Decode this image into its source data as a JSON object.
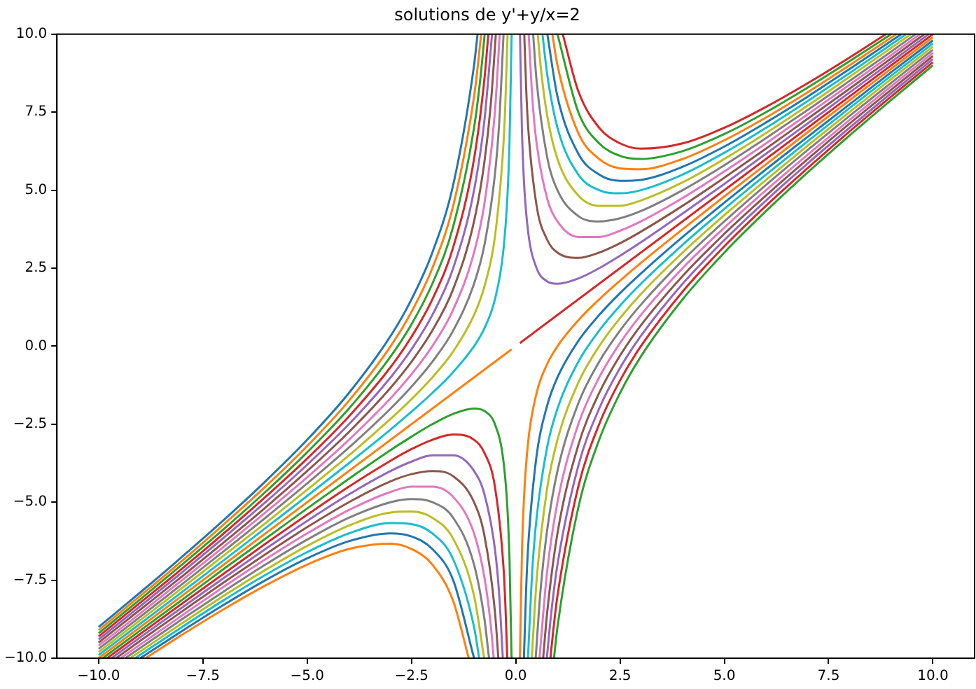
{
  "chart_data": {
    "type": "line",
    "title": "solutions de y'+y/x=2",
    "xlim": [
      -11,
      11
    ],
    "xticks": [
      {
        "value": -10,
        "label": "−10.0"
      },
      {
        "value": -7.5,
        "label": "−7.5"
      },
      {
        "value": -5,
        "label": "−5.0"
      },
      {
        "value": -2.5,
        "label": "−2.5"
      },
      {
        "value": 0,
        "label": "0.0"
      },
      {
        "value": 2.5,
        "label": "2.5"
      },
      {
        "value": 5,
        "label": "5.0"
      },
      {
        "value": 7.5,
        "label": "7.5"
      },
      {
        "value": 10,
        "label": "10.0"
      }
    ],
    "ylim": [
      -10,
      10
    ],
    "yticks": [
      {
        "value": -10,
        "label": "−10.0"
      },
      {
        "value": -7.5,
        "label": "−7.5"
      },
      {
        "value": -5,
        "label": "−5.0"
      },
      {
        "value": -2.5,
        "label": "−2.5"
      },
      {
        "value": 0,
        "label": "0.0"
      },
      {
        "value": 2.5,
        "label": "2.5"
      },
      {
        "value": 5,
        "label": "5.0"
      },
      {
        "value": 7.5,
        "label": "7.5"
      },
      {
        "value": 10,
        "label": "10.0"
      }
    ],
    "series": [
      {
        "color": "#1f77b4",
        "x": [
          -0.916,
          -1,
          -1.5,
          -2,
          -2.5,
          -3,
          -4,
          -5,
          -6,
          -7,
          -8,
          -9,
          -10
        ],
        "values": [
          10,
          9,
          5.17,
          3,
          1.5,
          0.33,
          -1.5,
          -3,
          -4.33,
          -5.57,
          -6.75,
          -7.89,
          -9
        ]
      },
      {
        "color": "#2ca02c",
        "x": [
          0.916,
          1,
          1.5,
          2,
          2.5,
          3,
          4,
          5,
          6,
          7,
          8,
          9,
          10
        ],
        "values": [
          -10,
          -9,
          -5.17,
          -3,
          -1.5,
          -0.33,
          1.5,
          3,
          4.33,
          5.57,
          6.75,
          7.89,
          9
        ]
      },
      {
        "color": "#ff7f0e",
        "x": [
          -0.831,
          -0.9,
          -1,
          -1.5,
          -2,
          -2.5,
          -3,
          -4,
          -5,
          -6,
          -7,
          -8,
          -9,
          -10
        ],
        "values": [
          10,
          9.1,
          8,
          4.5,
          2.5,
          1.1,
          0,
          -1.75,
          -3.2,
          -4.5,
          -5.71,
          -6.88,
          -8,
          -9.1
        ]
      },
      {
        "color": "#d62728",
        "x": [
          0.831,
          0.9,
          1,
          1.5,
          2,
          2.5,
          3,
          4,
          5,
          6,
          7,
          8,
          9,
          10
        ],
        "values": [
          -10,
          -9.1,
          -8,
          -4.5,
          -2.5,
          -1.1,
          0,
          1.75,
          3.2,
          4.5,
          5.71,
          6.88,
          8,
          9.1
        ]
      },
      {
        "color": "#2ca02c",
        "x": [
          -0.745,
          -0.85,
          -1,
          -1.5,
          -2,
          -2.5,
          -3,
          -4,
          -5,
          -6,
          -7,
          -8,
          -9,
          -10
        ],
        "values": [
          10,
          8.56,
          7,
          3.83,
          2,
          0.7,
          -0.33,
          -2,
          -3.4,
          -4.67,
          -5.86,
          -7,
          -8.11,
          -9.2
        ]
      },
      {
        "color": "#9467bd",
        "x": [
          0.745,
          0.85,
          1,
          1.5,
          2,
          2.5,
          3,
          4,
          5,
          6,
          7,
          8,
          9,
          10
        ],
        "values": [
          -10,
          -8.56,
          -7,
          -3.83,
          -2,
          -0.7,
          0.33,
          2,
          3.4,
          4.67,
          5.86,
          7,
          8.11,
          9.2
        ]
      },
      {
        "color": "#d62728",
        "x": [
          -0.657,
          -0.75,
          -1,
          -1.5,
          -2,
          -2.5,
          -3,
          -4,
          -5,
          -6,
          -7,
          -8,
          -9,
          -10
        ],
        "values": [
          10,
          8.58,
          6,
          3.17,
          1.5,
          0.3,
          -0.67,
          -2.25,
          -3.6,
          -4.83,
          -6,
          -7.13,
          -8.22,
          -9.3
        ]
      },
      {
        "color": "#8c564b",
        "x": [
          0.657,
          0.75,
          1,
          1.5,
          2,
          2.5,
          3,
          4,
          5,
          6,
          7,
          8,
          9,
          10
        ],
        "values": [
          -10,
          -8.58,
          -6,
          -3.17,
          -1.5,
          -0.3,
          0.67,
          2.25,
          3.6,
          4.83,
          6,
          7.13,
          8.22,
          9.3
        ]
      },
      {
        "color": "#9467bd",
        "x": [
          -0.568,
          -0.75,
          -1,
          -1.5,
          -2,
          -2.5,
          -3,
          -4,
          -5,
          -6,
          -7,
          -8,
          -9,
          -10
        ],
        "values": [
          10,
          7.25,
          5,
          2.5,
          1,
          -0.1,
          -1,
          -2.5,
          -3.8,
          -5,
          -6.14,
          -7.25,
          -8.33,
          -9.4
        ]
      },
      {
        "color": "#e377c2",
        "x": [
          0.568,
          0.75,
          1,
          1.5,
          2,
          2.5,
          3,
          4,
          5,
          6,
          7,
          8,
          9,
          10
        ],
        "values": [
          -10,
          -7.25,
          -5,
          -2.5,
          -1,
          0.1,
          1,
          2.5,
          3.8,
          5,
          6.14,
          7.25,
          8.33,
          9.4
        ]
      },
      {
        "color": "#8c564b",
        "x": [
          -0.477,
          -0.6,
          -0.75,
          -1,
          -1.5,
          -2,
          -2.5,
          -3,
          -4,
          -5,
          -6,
          -7,
          -8,
          -9,
          -10
        ],
        "values": [
          10,
          7.73,
          5.92,
          4,
          1.83,
          0.5,
          -0.5,
          -1.33,
          -2.75,
          -4,
          -5.17,
          -6.29,
          -7.38,
          -8.44,
          -9.5
        ]
      },
      {
        "color": "#7f7f7f",
        "x": [
          0.477,
          0.6,
          0.75,
          1,
          1.5,
          2,
          2.5,
          3,
          4,
          5,
          6,
          7,
          8,
          9,
          10
        ],
        "values": [
          -10,
          -7.73,
          -5.92,
          -4,
          -1.83,
          -0.5,
          0.5,
          1.33,
          2.75,
          4,
          5.17,
          6.29,
          7.38,
          8.44,
          9.5
        ]
      },
      {
        "color": "#e377c2",
        "x": [
          -0.385,
          -0.5,
          -0.75,
          -1,
          -1.5,
          -2,
          -2.5,
          -3,
          -4,
          -5,
          -6,
          -7,
          -8,
          -9,
          -10
        ],
        "values": [
          10,
          7.5,
          4.58,
          3,
          1.17,
          0,
          -0.9,
          -1.67,
          -3,
          -4.2,
          -5.33,
          -6.43,
          -7.5,
          -8.56,
          -9.6
        ]
      },
      {
        "color": "#bcbd22",
        "x": [
          0.385,
          0.5,
          0.75,
          1,
          1.5,
          2,
          2.5,
          3,
          4,
          5,
          6,
          7,
          8,
          9,
          10
        ],
        "values": [
          -10,
          -7.5,
          -4.58,
          -3,
          -1.17,
          0,
          0.9,
          1.67,
          3,
          4.2,
          5.33,
          6.43,
          7.5,
          8.56,
          9.6
        ]
      },
      {
        "color": "#7f7f7f",
        "x": [
          -0.292,
          -0.4,
          -0.5,
          -0.75,
          -1,
          -1.5,
          -2,
          -2.5,
          -3,
          -4,
          -5,
          -6,
          -7,
          -8,
          -9,
          -10
        ],
        "values": [
          10,
          7.1,
          5.5,
          3.25,
          2,
          0.5,
          -0.5,
          -1.3,
          -2,
          -3.25,
          -4.4,
          -5.5,
          -6.57,
          -7.63,
          -8.67,
          -9.7
        ]
      },
      {
        "color": "#17becf",
        "x": [
          0.292,
          0.4,
          0.5,
          0.75,
          1,
          1.5,
          2,
          2.5,
          3,
          4,
          5,
          6,
          7,
          8,
          9,
          10
        ],
        "values": [
          -10,
          -7.1,
          -5.5,
          -3.25,
          -2,
          -0.5,
          0.5,
          1.3,
          2,
          3.25,
          4.4,
          5.5,
          6.57,
          7.63,
          8.67,
          9.7
        ]
      },
      {
        "color": "#bcbd22",
        "x": [
          -0.196,
          -0.25,
          -0.3,
          -0.5,
          -0.75,
          -1,
          -1.5,
          -2,
          -2.5,
          -3,
          -4,
          -5,
          -6,
          -7,
          -8,
          -9,
          -10
        ],
        "values": [
          10,
          7.75,
          6.37,
          3.5,
          1.92,
          1,
          -0.17,
          -1,
          -1.7,
          -2.33,
          -3.5,
          -4.6,
          -5.67,
          -6.71,
          -7.75,
          -8.78,
          -9.8
        ]
      },
      {
        "color": "#1f77b4",
        "x": [
          0.196,
          0.25,
          0.3,
          0.5,
          0.75,
          1,
          1.5,
          2,
          2.5,
          3,
          4,
          5,
          6,
          7,
          8,
          9,
          10
        ],
        "values": [
          -10,
          -7.75,
          -6.37,
          -3.5,
          -1.92,
          -1,
          0.17,
          1,
          1.7,
          2.33,
          3.5,
          4.6,
          5.67,
          6.71,
          7.75,
          8.78,
          9.8
        ]
      },
      {
        "color": "#17becf",
        "x": [
          -0.099,
          -0.15,
          -0.2,
          -0.3,
          -0.5,
          -0.75,
          -1,
          -1.5,
          -2,
          -2.5,
          -3,
          -4,
          -5,
          -6,
          -7,
          -8,
          -9,
          -10
        ],
        "values": [
          10,
          6.52,
          4.8,
          3.03,
          1.5,
          0.58,
          0,
          -0.83,
          -1.5,
          -2.1,
          -2.67,
          -3.75,
          -4.8,
          -5.83,
          -6.86,
          -7.88,
          -8.89,
          -9.9
        ]
      },
      {
        "color": "#ff7f0e",
        "x": [
          0.099,
          0.15,
          0.2,
          0.3,
          0.5,
          0.75,
          1,
          1.5,
          2,
          2.5,
          3,
          4,
          5,
          6,
          7,
          8,
          9,
          10
        ],
        "values": [
          -10,
          -6.52,
          -4.8,
          -3.03,
          -1.5,
          -0.58,
          0,
          0.83,
          1.5,
          2.1,
          2.67,
          3.75,
          4.8,
          5.83,
          6.86,
          7.88,
          8.89,
          9.9
        ]
      },
      {
        "color": "#ff7f0e",
        "x": [
          -0.1,
          -10
        ],
        "values": [
          -0.1,
          -10
        ]
      },
      {
        "color": "#d62728",
        "x": [
          0.1,
          10
        ],
        "values": [
          0.1,
          10
        ]
      },
      {
        "color": "#2ca02c",
        "x": [
          -0.101,
          -0.15,
          -0.2,
          -0.3,
          -0.5,
          -0.75,
          -1,
          -1.5,
          -2,
          -2.5,
          -3,
          -4,
          -5,
          -6,
          -7,
          -8,
          -9,
          -9.899
        ],
        "values": [
          -10,
          -6.82,
          -5.2,
          -3.63,
          -2.5,
          -2.08,
          -2,
          -2.17,
          -2.5,
          -2.9,
          -3.33,
          -4.25,
          -5.2,
          -6.17,
          -7.14,
          -8.13,
          -9.11,
          -10
        ]
      },
      {
        "color": "#9467bd",
        "x": [
          0.101,
          0.15,
          0.2,
          0.3,
          0.5,
          0.75,
          1,
          1.5,
          2,
          2.5,
          3,
          4,
          5,
          6,
          7,
          8,
          9,
          9.899
        ],
        "values": [
          10,
          6.82,
          5.2,
          3.63,
          2.5,
          2.08,
          2,
          2.17,
          2.5,
          2.9,
          3.33,
          4.25,
          5.2,
          6.17,
          7.14,
          8.13,
          9.11,
          10
        ]
      },
      {
        "color": "#d62728",
        "x": [
          -0.204,
          -0.25,
          -0.3,
          -0.5,
          -0.75,
          -1,
          -1.5,
          -2,
          -2.5,
          -3,
          -4,
          -5,
          -6,
          -7,
          -8,
          -9,
          -9.796
        ],
        "values": [
          -10,
          -8.25,
          -6.97,
          -4.5,
          -3.42,
          -3,
          -2.83,
          -3,
          -3.3,
          -3.67,
          -4.5,
          -5.4,
          -6.33,
          -7.29,
          -8.25,
          -9.22,
          -10
        ]
      },
      {
        "color": "#8c564b",
        "x": [
          0.204,
          0.25,
          0.3,
          0.5,
          0.75,
          1,
          1.5,
          2,
          2.5,
          3,
          4,
          5,
          6,
          7,
          8,
          9,
          9.796
        ],
        "values": [
          10,
          8.25,
          6.97,
          4.5,
          3.42,
          3,
          2.83,
          3,
          3.3,
          3.67,
          4.5,
          5.4,
          6.33,
          7.29,
          8.25,
          9.22,
          10
        ]
      },
      {
        "color": "#9467bd",
        "x": [
          -0.31,
          -0.4,
          -0.5,
          -0.75,
          -1,
          -1.5,
          -2,
          -2.5,
          -3,
          -4,
          -5,
          -6,
          -7,
          -8,
          -9,
          -9.69
        ],
        "values": [
          -10,
          -7.9,
          -6.5,
          -4.75,
          -4,
          -3.5,
          -3.5,
          -3.7,
          -4,
          -4.75,
          -5.6,
          -6.5,
          -7.43,
          -8.38,
          -9.33,
          -10
        ]
      },
      {
        "color": "#e377c2",
        "x": [
          0.31,
          0.4,
          0.5,
          0.75,
          1,
          1.5,
          2,
          2.5,
          3,
          4,
          5,
          6,
          7,
          8,
          9,
          9.69
        ],
        "values": [
          10,
          7.9,
          6.5,
          4.75,
          4,
          3.5,
          3.5,
          3.7,
          4,
          4.75,
          5.6,
          6.5,
          7.43,
          8.38,
          9.33,
          10
        ]
      },
      {
        "color": "#8c564b",
        "x": [
          -0.417,
          -0.5,
          -0.75,
          -1,
          -1.5,
          -2,
          -2.5,
          -3,
          -4,
          -5,
          -6,
          -7,
          -8,
          -9,
          -9.583
        ],
        "values": [
          -10,
          -8.5,
          -6.08,
          -5,
          -4.17,
          -4,
          -4.1,
          -4.33,
          -5,
          -5.8,
          -6.67,
          -7.57,
          -8.5,
          -9.44,
          -10
        ]
      },
      {
        "color": "#7f7f7f",
        "x": [
          0.417,
          0.5,
          0.75,
          1,
          1.5,
          2,
          2.5,
          3,
          4,
          5,
          6,
          7,
          8,
          9,
          9.583
        ],
        "values": [
          10,
          8.5,
          6.08,
          5,
          4.17,
          4,
          4.1,
          4.33,
          5,
          5.8,
          6.67,
          7.57,
          8.5,
          9.44,
          10
        ]
      },
      {
        "color": "#e377c2",
        "x": [
          -0.528,
          -0.6,
          -0.75,
          -1,
          -1.5,
          -2,
          -2.5,
          -3,
          -4,
          -5,
          -6,
          -7,
          -8,
          -9,
          -9.472
        ],
        "values": [
          -10,
          -8.93,
          -7.42,
          -6,
          -4.83,
          -4.5,
          -4.5,
          -4.67,
          -5.25,
          -6,
          -6.83,
          -7.71,
          -8.63,
          -9.56,
          -10
        ]
      },
      {
        "color": "#bcbd22",
        "x": [
          0.528,
          0.6,
          0.75,
          1,
          1.5,
          2,
          2.5,
          3,
          4,
          5,
          6,
          7,
          8,
          9,
          9.472
        ],
        "values": [
          10,
          8.93,
          7.42,
          6,
          4.83,
          4.5,
          4.5,
          4.67,
          5.25,
          6,
          6.83,
          7.71,
          8.63,
          9.56,
          10
        ]
      },
      {
        "color": "#7f7f7f",
        "x": [
          -0.641,
          -0.75,
          -1,
          -1.5,
          -2,
          -2.5,
          -3,
          -4,
          -5,
          -6,
          -7,
          -8,
          -9,
          -9.359
        ],
        "values": [
          -10,
          -8.75,
          -7,
          -5.5,
          -5,
          -4.9,
          -5,
          -5.5,
          -6.2,
          -7,
          -7.86,
          -8.75,
          -9.67,
          -10
        ]
      },
      {
        "color": "#17becf",
        "x": [
          0.641,
          0.75,
          1,
          1.5,
          2,
          2.5,
          3,
          4,
          5,
          6,
          7,
          8,
          9,
          9.359
        ],
        "values": [
          10,
          8.75,
          7,
          5.5,
          5,
          4.9,
          5,
          5.5,
          6.2,
          7,
          7.86,
          8.75,
          9.67,
          10
        ]
      },
      {
        "color": "#bcbd22",
        "x": [
          -0.757,
          -1,
          -1.5,
          -2,
          -2.5,
          -3,
          -4,
          -5,
          -6,
          -7,
          -8,
          -9,
          -9.243
        ],
        "values": [
          -10,
          -8,
          -6.17,
          -5.5,
          -5.3,
          -5.33,
          -5.75,
          -6.4,
          -7.17,
          -8,
          -8.88,
          -9.78,
          -10
        ]
      },
      {
        "color": "#1f77b4",
        "x": [
          0.757,
          1,
          1.5,
          2,
          2.5,
          3,
          4,
          5,
          6,
          7,
          8,
          9,
          9.243
        ],
        "values": [
          10,
          8,
          6.17,
          5.5,
          5.3,
          5.33,
          5.75,
          6.4,
          7.17,
          8,
          8.88,
          9.78,
          10
        ]
      },
      {
        "color": "#17becf",
        "x": [
          -0.877,
          -1,
          -1.5,
          -2,
          -2.5,
          -3,
          -4,
          -5,
          -6,
          -7,
          -8,
          -9,
          -9.123
        ],
        "values": [
          -10,
          -9,
          -6.83,
          -6,
          -5.7,
          -5.67,
          -6,
          -6.6,
          -7.33,
          -8.14,
          -9,
          -9.89,
          -10
        ]
      },
      {
        "color": "#ff7f0e",
        "x": [
          0.877,
          1,
          1.5,
          2,
          2.5,
          3,
          4,
          5,
          6,
          7,
          8,
          9,
          9.123
        ],
        "values": [
          10,
          9,
          6.83,
          6,
          5.7,
          5.67,
          6,
          6.6,
          7.33,
          8.14,
          9,
          9.89,
          10
        ]
      },
      {
        "color": "#1f77b4",
        "x": [
          -1,
          -1.5,
          -2,
          -2.5,
          -3,
          -4,
          -5,
          -6,
          -7,
          -8,
          -9
        ],
        "values": [
          -10,
          -7.5,
          -6.5,
          -6.1,
          -6,
          -6.25,
          -6.8,
          -7.5,
          -8.29,
          -9.13,
          -10
        ]
      },
      {
        "color": "#2ca02c",
        "x": [
          1,
          1.5,
          2,
          2.5,
          3,
          4,
          5,
          6,
          7,
          8,
          9
        ],
        "values": [
          10,
          7.5,
          6.5,
          6.1,
          6,
          6.25,
          6.8,
          7.5,
          8.29,
          9.13,
          10
        ]
      },
      {
        "color": "#ff7f0e",
        "x": [
          -1.127,
          -1.5,
          -2,
          -2.5,
          -3,
          -4,
          -5,
          -6,
          -7,
          -8,
          -8.873
        ],
        "values": [
          -10,
          -8.17,
          -7,
          -6.5,
          -6.33,
          -6.5,
          -7,
          -7.67,
          -8.43,
          -9.25,
          -10
        ]
      },
      {
        "color": "#d62728",
        "x": [
          1.127,
          1.5,
          2,
          2.5,
          3,
          4,
          5,
          6,
          7,
          8,
          8.873
        ],
        "values": [
          10,
          8.17,
          7,
          6.5,
          6.33,
          6.5,
          7,
          7.67,
          8.43,
          9.25,
          10
        ]
      }
    ]
  }
}
